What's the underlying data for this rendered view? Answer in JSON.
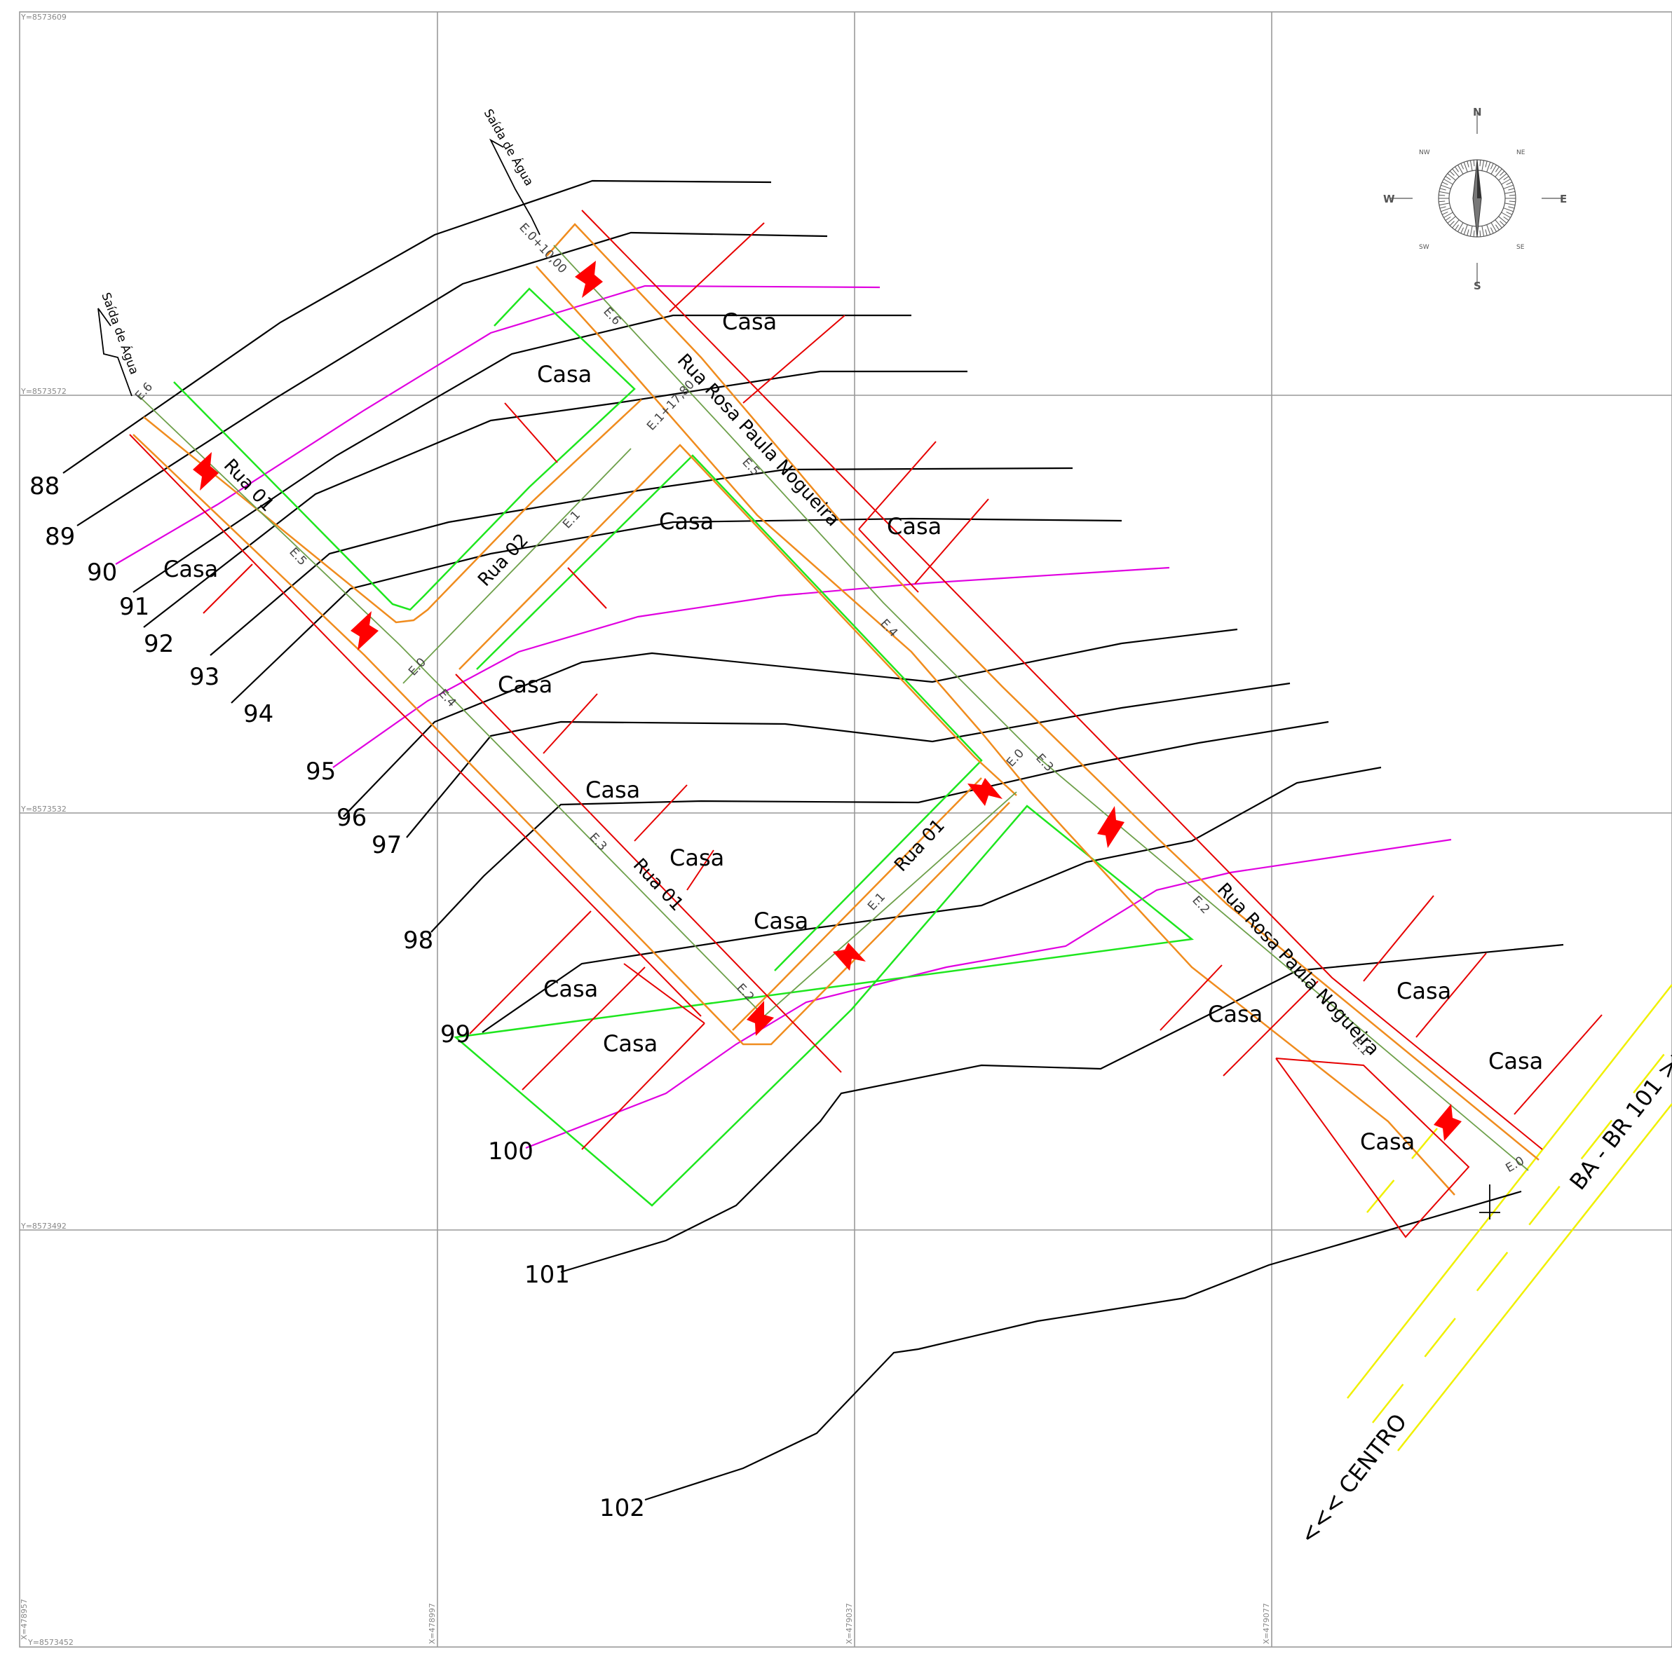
{
  "grid": {
    "y_labels": [
      "Y=8573609",
      "Y=8573572",
      "Y=8573532",
      "Y=8573492",
      "Y=8573452"
    ],
    "x_labels": [
      "X=478957",
      "X=478997",
      "X=479037",
      "X=479077"
    ]
  },
  "contours": [
    "88",
    "89",
    "90",
    "91",
    "92",
    "93",
    "94",
    "95",
    "96",
    "97",
    "98",
    "99",
    "100",
    "101",
    "102"
  ],
  "houses": {
    "label": "Casa"
  },
  "streets": {
    "rua_rosa_a": "Rua Rosa Paula Nogueira",
    "rua_rosa_b": "Rua Rosa Paula Nogueira",
    "rua01_a": "Rua 01",
    "rua01_b": "Rua 01",
    "rua01_c": "Rua 01",
    "rua02": "Rua 02"
  },
  "stations": {
    "e0": "E.0",
    "e1": "E.1",
    "e2": "E.2",
    "e3": "E.3",
    "e4": "E.4",
    "e5": "E.5",
    "e6": "E.6",
    "e1_1780": "E.1+17,80",
    "e0_1000": "E.0+10,00"
  },
  "notes": {
    "saida_agua": "Saída de Água"
  },
  "compass": {
    "n": "N",
    "s": "S",
    "e": "E",
    "w": "W",
    "ne": "NE",
    "nw": "NW",
    "se": "SE",
    "sw": "SW"
  },
  "highway": {
    "label": "BA - BR 101 >>",
    "direction": "<<< CENTRO"
  },
  "colors": {
    "contour": "#000000",
    "contour_magenta": "#e000e0",
    "lot_red": "#e60000",
    "street_orange": "#f08c1e",
    "axis_green": "#6ea04b",
    "block_green": "#1ee61e",
    "highway_yellow": "#f0f000",
    "grid": "#999999",
    "arrow": "#ff0000"
  }
}
